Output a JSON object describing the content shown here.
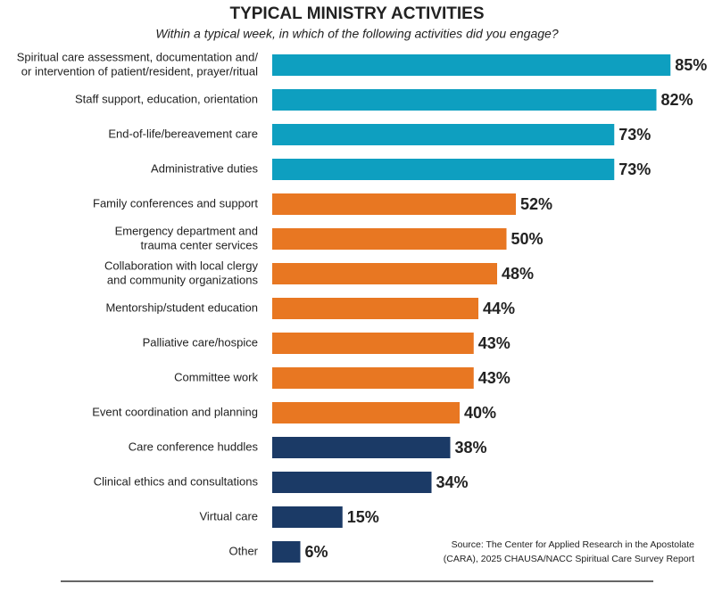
{
  "chart_data": {
    "type": "bar",
    "orientation": "horizontal",
    "title": "TYPICAL MINISTRY ACTIVITIES",
    "subtitle": "Within a typical week, in which of the following activities did you engage?",
    "categories": [
      [
        "Spiritual care assessment, documentation and/",
        "or intervention of patient/resident, prayer/ritual"
      ],
      [
        "Staff support, education, orientation"
      ],
      [
        "End-of-life/bereavement care"
      ],
      [
        "Administrative duties"
      ],
      [
        "Family conferences and support"
      ],
      [
        "Emergency department and",
        "trauma center services"
      ],
      [
        "Collaboration with local clergy",
        "and community organizations"
      ],
      [
        "Mentorship/student education"
      ],
      [
        "Palliative care/hospice"
      ],
      [
        "Committee work"
      ],
      [
        "Event coordination and planning"
      ],
      [
        "Care conference huddles"
      ],
      [
        "Clinical ethics and consultations"
      ],
      [
        "Virtual care"
      ],
      [
        "Other"
      ]
    ],
    "values": [
      85,
      82,
      73,
      73,
      52,
      50,
      48,
      44,
      43,
      43,
      40,
      38,
      34,
      15,
      6
    ],
    "value_labels": [
      "85%",
      "82%",
      "73%",
      "73%",
      "52%",
      "50%",
      "48%",
      "44%",
      "43%",
      "43%",
      "40%",
      "38%",
      "34%",
      "15%",
      "6%"
    ],
    "colors": [
      "#0e9fc0",
      "#0e9fc0",
      "#0e9fc0",
      "#0e9fc0",
      "#e87722",
      "#e87722",
      "#e87722",
      "#e87722",
      "#e87722",
      "#e87722",
      "#e87722",
      "#1b3a66",
      "#1b3a66",
      "#1b3a66",
      "#1b3a66"
    ],
    "source": [
      "Source: The Center for Applied Research in the Apostolate",
      "(CARA), 2025 CHAUSA/NACC Spiritual Care Survey Report"
    ]
  }
}
